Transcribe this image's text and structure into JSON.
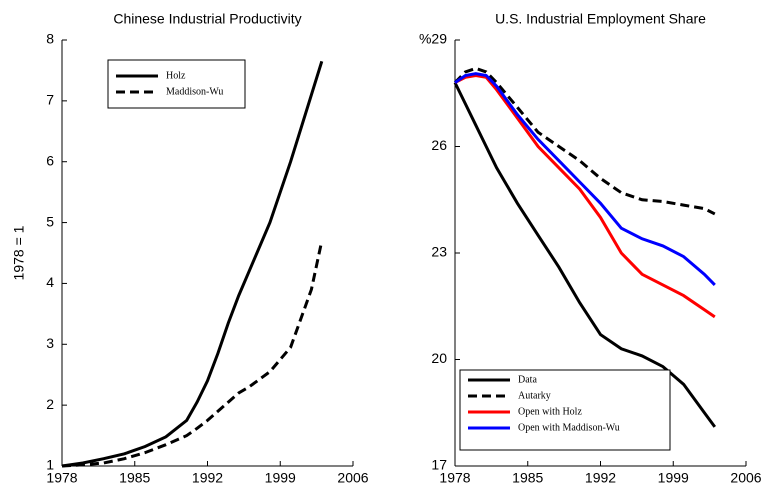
{
  "chart_data": [
    {
      "type": "line",
      "title": "Chinese Industrial Productivity",
      "ylabel": "1978 = 1",
      "legend": "upper left",
      "xlim": [
        1978,
        2006
      ],
      "xticks": [
        1978,
        1985,
        1992,
        1999,
        2006
      ],
      "ylim": [
        1,
        8
      ],
      "yticks": [
        1,
        2,
        3,
        4,
        5,
        6,
        7,
        8
      ],
      "x": [
        1978,
        1980,
        1982,
        1984,
        1986,
        1988,
        1990,
        1991,
        1992,
        1993,
        1994,
        1995,
        1996,
        1998,
        2000,
        2002,
        2003
      ],
      "series": [
        {
          "name": "Holz",
          "color": "#000000",
          "dashed": false,
          "values": [
            1,
            1.05,
            1.12,
            1.2,
            1.32,
            1.48,
            1.75,
            2.05,
            2.4,
            2.85,
            3.35,
            3.8,
            4.2,
            5.0,
            6.0,
            7.1,
            7.65
          ]
        },
        {
          "name": "Maddison-Wu",
          "color": "#000000",
          "dashed": true,
          "values": [
            1,
            1.02,
            1.05,
            1.12,
            1.22,
            1.35,
            1.5,
            1.62,
            1.75,
            1.9,
            2.05,
            2.2,
            2.3,
            2.55,
            2.95,
            3.9,
            4.7
          ]
        }
      ]
    },
    {
      "type": "line",
      "title": "U.S. Industrial Employment Share",
      "legend": "lower left",
      "xlim": [
        1978,
        2006
      ],
      "xticks": [
        1978,
        1985,
        1992,
        1999,
        2006
      ],
      "ylim": [
        17,
        29
      ],
      "yticks": [
        17,
        20,
        23,
        26,
        {
          "value": 29,
          "label": "%29"
        }
      ],
      "x": [
        1978,
        1979,
        1980,
        1981,
        1982,
        1984,
        1986,
        1988,
        1990,
        1992,
        1994,
        1996,
        1998,
        2000,
        2002,
        2003
      ],
      "series": [
        {
          "name": "Data",
          "color": "#000000",
          "dashed": false,
          "values": [
            27.8,
            27.2,
            26.6,
            26.0,
            25.4,
            24.4,
            23.5,
            22.6,
            21.6,
            20.7,
            20.3,
            20.1,
            19.8,
            19.3,
            18.5,
            18.1
          ]
        },
        {
          "name": "Autarky",
          "color": "#000000",
          "dashed": true,
          "values": [
            27.8,
            28.1,
            28.2,
            28.1,
            27.8,
            27.1,
            26.4,
            26.0,
            25.6,
            25.1,
            24.7,
            24.5,
            24.45,
            24.35,
            24.25,
            24.1
          ]
        },
        {
          "name": "Open with Holz",
          "color": "#ff0000",
          "dashed": false,
          "values": [
            27.8,
            27.95,
            28.0,
            27.95,
            27.6,
            26.8,
            26.0,
            25.4,
            24.8,
            24.0,
            23.0,
            22.4,
            22.1,
            21.8,
            21.4,
            21.2
          ]
        },
        {
          "name": "Open with Maddison-Wu",
          "color": "#0000ff",
          "dashed": false,
          "values": [
            27.8,
            28.0,
            28.05,
            28.0,
            27.7,
            26.9,
            26.2,
            25.6,
            25.0,
            24.4,
            23.7,
            23.4,
            23.2,
            22.9,
            22.4,
            22.1
          ]
        }
      ]
    }
  ]
}
